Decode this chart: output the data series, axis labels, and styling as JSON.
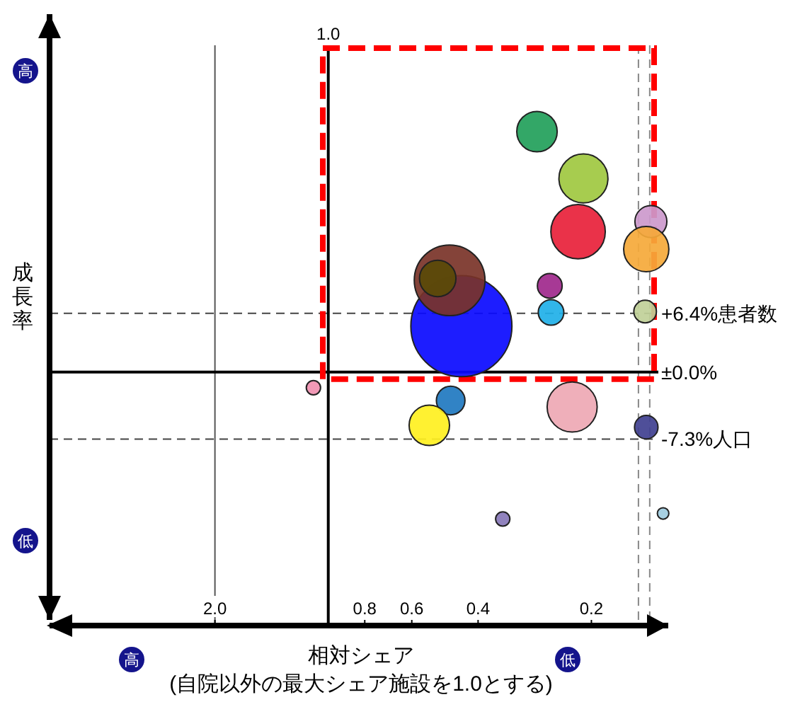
{
  "chart_data": {
    "type": "bubble",
    "ylabel": "成長率",
    "xlabel": "相対シェア\n(自院以外の最大シェア施設を1.0とする)",
    "annotations": [
      "高",
      "低",
      "高",
      "低"
    ],
    "xlim": [
      5.5,
      0.125
    ],
    "ylim": [
      -27,
      39
    ],
    "log": "x",
    "xticks": [
      {
        "value": 2,
        "label": "2.0"
      },
      0.8,
      0.6,
      0.4,
      0.2
    ],
    "ref_lines": [
      {
        "axis": "x",
        "value": 1.0,
        "label": "1.0",
        "color": "#000000",
        "line_style": "solid"
      },
      {
        "axis": "x",
        "value": 2.0,
        "color": "#555555",
        "line_style": "solid"
      },
      {
        "axis": "x",
        "value": 0.15,
        "color": "#888888",
        "line_style": "dashed"
      },
      {
        "axis": "x",
        "value": 0.14,
        "color": "#888888",
        "line_style": "dashed"
      },
      {
        "axis": "y",
        "value": 6.4,
        "label": "+6.4%患者数",
        "color": "#444444",
        "line_style": "dashed"
      },
      {
        "axis": "y",
        "value": 0,
        "label": "±0.0%",
        "color": "#000000",
        "line_style": "solid"
      },
      {
        "axis": "y",
        "value": -7.3,
        "label": "-7.3%人口",
        "color": "#444444",
        "line_style": "dashed"
      }
    ],
    "grid": false,
    "marker": "circle",
    "series": [
      {
        "x": [
          0.443,
          0.476,
          0.512,
          0.279,
          0.21,
          0.217,
          0.139,
          0.143,
          0.258,
          0.256,
          0.144,
          1.095,
          0.473,
          0.539,
          0.225,
          0.143,
          0.344,
          0.129
        ],
        "values": [
          5.0,
          10.0,
          10.2,
          26.2,
          21.1,
          15.3,
          16.4,
          13.4,
          9.4,
          6.5,
          6.6,
          -1.7,
          -3.1,
          -5.8,
          -3.8,
          -6.0,
          -16.0,
          -15.4
        ],
        "sizes": [
          1,
          0.49,
          0.13,
          0.16,
          0.235,
          0.29,
          0.1,
          0.2,
          0.06,
          0.064,
          0.05,
          0.02,
          0.08,
          0.16,
          0.245,
          0.054,
          0.02,
          0.013
        ],
        "colors": [
          "#0a0aff",
          "#7a3328",
          "#5a4a08",
          "#22a05a",
          "#a0c840",
          "#e8213a",
          "#cc99cc",
          "#f5a93a",
          "#a0288c",
          "#20b0e8",
          "#c0d098",
          "#f090b0",
          "#2078c0",
          "#fff020",
          "#eea8b4",
          "#404090",
          "#8878b8",
          "#a0cce0"
        ]
      }
    ]
  }
}
